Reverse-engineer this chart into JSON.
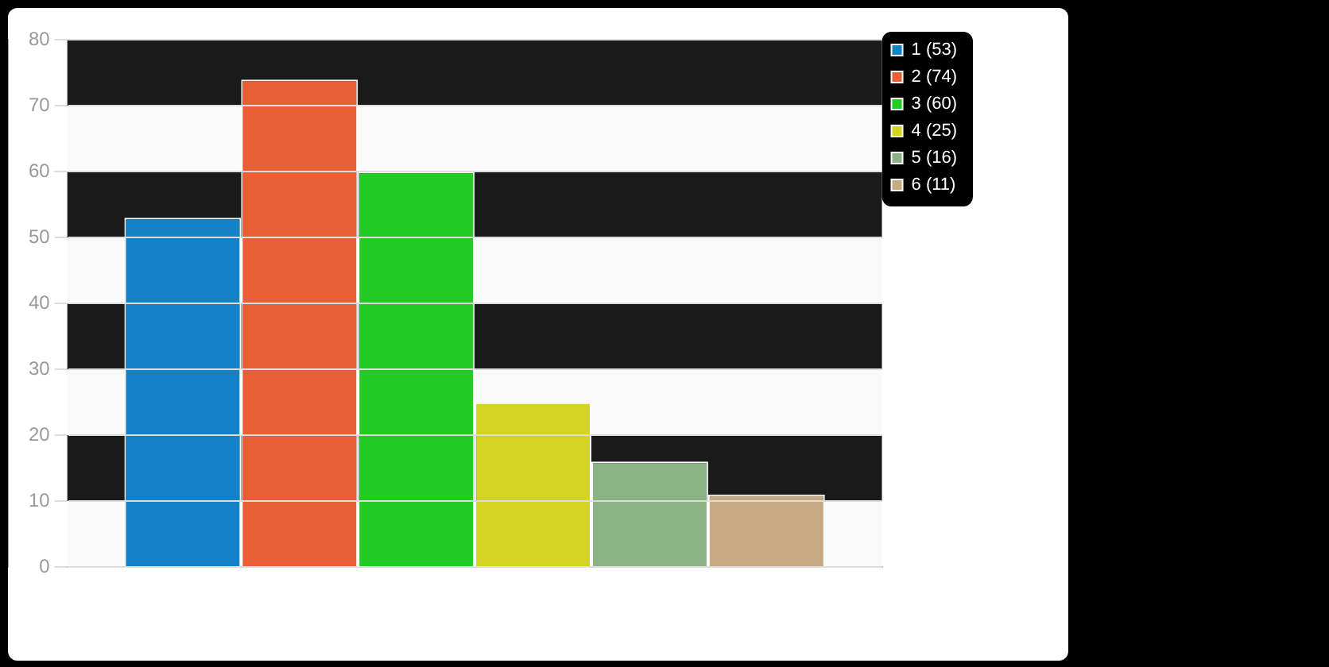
{
  "chart_data": {
    "type": "bar",
    "categories": [
      null
    ],
    "series": [
      {
        "name": "1 (53)",
        "color": "#1582c8",
        "values": [
          53
        ]
      },
      {
        "name": "2 (74)",
        "color": "#e85f36",
        "values": [
          74
        ]
      },
      {
        "name": "3 (60)",
        "color": "#21cc23",
        "values": [
          60
        ]
      },
      {
        "name": "4 (25)",
        "color": "#d4d520",
        "values": [
          25
        ]
      },
      {
        "name": "5 (16)",
        "color": "#8ab485",
        "values": [
          16
        ]
      },
      {
        "name": "6 (11)",
        "color": "#c8aa82",
        "values": [
          11
        ]
      }
    ],
    "ylim": [
      0,
      80
    ],
    "yticks": [
      0,
      10,
      20,
      30,
      40,
      50,
      60,
      70,
      80
    ],
    "grid": true,
    "legend": "top right"
  }
}
